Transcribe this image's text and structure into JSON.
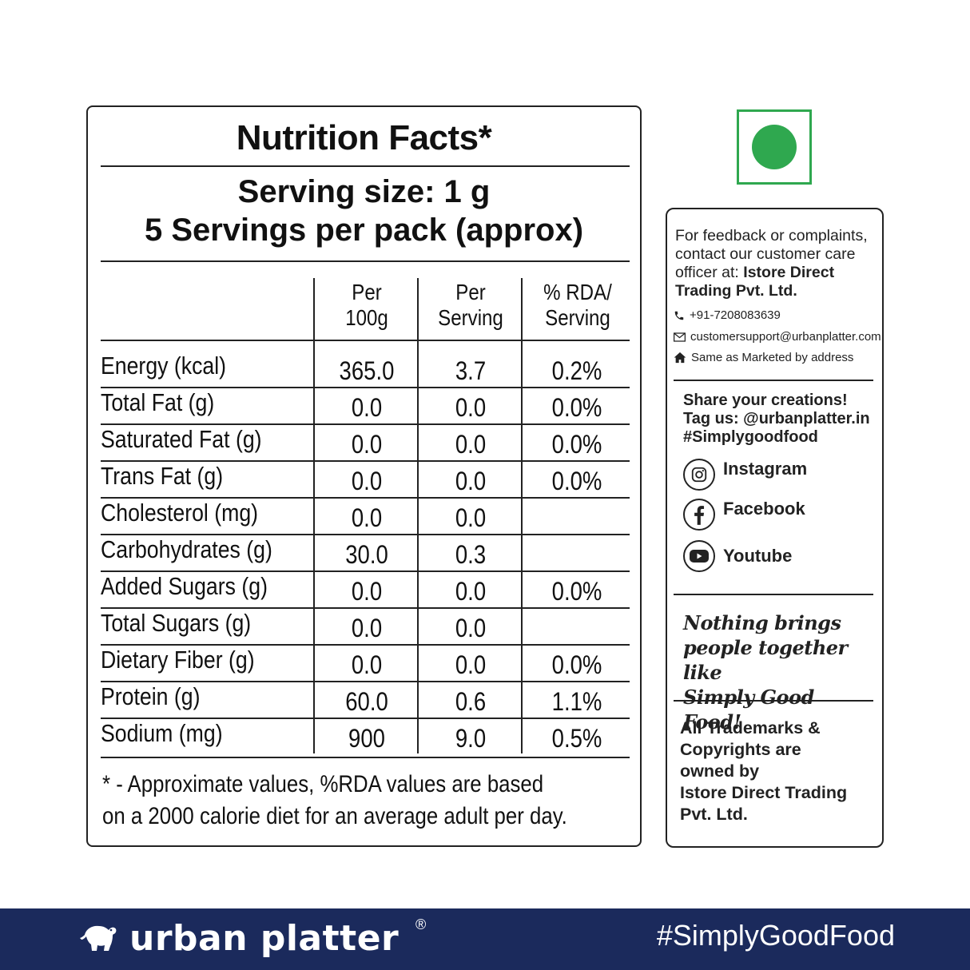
{
  "nutrition": {
    "title": "Nutrition Facts*",
    "serving_size": "Serving size: 1 g",
    "servings_per_pack": "5 Servings per pack (approx)",
    "columns": [
      {
        "line1": "Per",
        "line2": "100g"
      },
      {
        "line1": "Per",
        "line2": "Serving"
      },
      {
        "line1": "% RDA/",
        "line2": "Serving"
      }
    ],
    "rows": [
      {
        "label": "Energy (kcal)",
        "per100": "365.0",
        "serving": "3.7",
        "rda": "0.2%"
      },
      {
        "label": "Total Fat (g)",
        "per100": "0.0",
        "serving": "0.0",
        "rda": "0.0%"
      },
      {
        "label": "Saturated Fat (g)",
        "per100": "0.0",
        "serving": "0.0",
        "rda": "0.0%"
      },
      {
        "label": "Trans Fat (g)",
        "per100": "0.0",
        "serving": "0.0",
        "rda": "0.0%"
      },
      {
        "label": "Cholesterol (mg)",
        "per100": "0.0",
        "serving": "0.0",
        "rda": ""
      },
      {
        "label": "Carbohydrates (g)",
        "per100": "30.0",
        "serving": "0.3",
        "rda": ""
      },
      {
        "label": "Added Sugars (g)",
        "per100": "0.0",
        "serving": "0.0",
        "rda": "0.0%"
      },
      {
        "label": "Total Sugars (g)",
        "per100": "0.0",
        "serving": "0.0",
        "rda": ""
      },
      {
        "label": "Dietary Fiber (g)",
        "per100": "0.0",
        "serving": "0.0",
        "rda": "0.0%"
      },
      {
        "label": "Protein (g)",
        "per100": "60.0",
        "serving": "0.6",
        "rda": "1.1%"
      },
      {
        "label": "Sodium (mg)",
        "per100": "900",
        "serving": "9.0",
        "rda": "0.5%"
      }
    ],
    "footnote_line1": "* - Approximate values, %RDA values are based",
    "footnote_line2": "on a 2000 calorie diet for an average adult per day."
  },
  "veg_mark": {
    "color": "#2fa84f",
    "icon": "veg-symbol-icon"
  },
  "info": {
    "feedback_intro": "For feedback or complaints, contact our customer care officer at:",
    "company": "Istore Direct Trading Pvt. Ltd.",
    "phone": "+91-7208083639",
    "email": "customersupport@urbanplatter.com",
    "address": "Same as Marketed by address",
    "share_line1": "Share your creations!",
    "share_line2": "Tag us: @urbanplatter.in",
    "share_line3": "#Simplygoodfood",
    "social": [
      {
        "label": "Instagram",
        "icon": "instagram-icon"
      },
      {
        "label": "Facebook",
        "icon": "facebook-icon"
      },
      {
        "label": "Youtube",
        "icon": "youtube-icon"
      }
    ],
    "tagline_line1": "Nothing brings",
    "tagline_line2": "people together like",
    "tagline_line3": "Simply Good Food!",
    "trademark_line1": "All Trademarks &",
    "trademark_line2": "Copyrights are",
    "trademark_line3": "owned by",
    "trademark_line4": "Istore Direct Trading",
    "trademark_line5": "Pvt. Ltd."
  },
  "footer": {
    "brand": "urban platter",
    "registered": "®",
    "hashtag": "#SimplyGoodFood",
    "background": "#1b2a5c"
  }
}
